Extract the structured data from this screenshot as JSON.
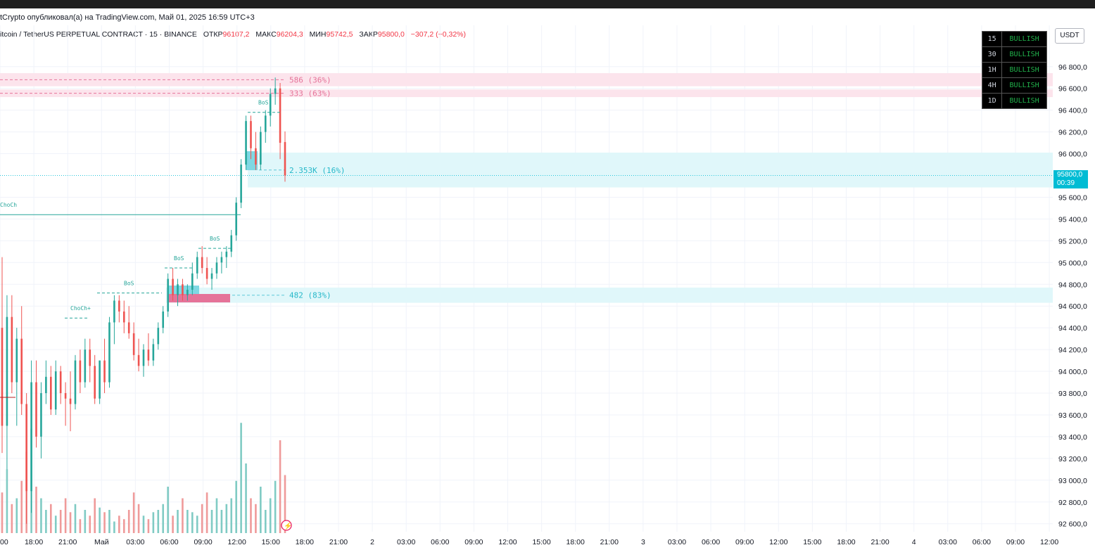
{
  "header": {
    "publish_text": "tCrypto опубликовал(а) на TradingView.com, Май 01, 2025 16:59 UTC+3",
    "symbol_text": "itcoin / TetherUS PERPETUAL CONTRACT · 15 · BINANCE",
    "open_label": "ОТКР",
    "open_value": "96107,2",
    "high_label": "МАКС",
    "high_value": "96204,3",
    "low_label": "МИН",
    "low_value": "95742,5",
    "close_label": "ЗАКР",
    "close_value": "95800,0",
    "change_text": "−307,2 (−0,32%)"
  },
  "currency_button": "USDT",
  "last_price": {
    "price": "95800,0",
    "countdown": "00:39"
  },
  "mtf_table": [
    {
      "tf": "15",
      "state": "BULLISH"
    },
    {
      "tf": "30",
      "state": "BULLISH"
    },
    {
      "tf": "1H",
      "state": "BULLISH"
    },
    {
      "tf": "4H",
      "state": "BULLISH"
    },
    {
      "tf": "1D",
      "state": "BULLISH"
    }
  ],
  "colors": {
    "up": "#26a69a",
    "down": "#ef5350",
    "vol_up": "#80cbc4",
    "vol_down": "#ef9a9a",
    "supply_zone": "#fce4ec",
    "demand_zone": "#e0f7fa",
    "struct": "#26a69a",
    "supply_line": "#e57399"
  },
  "chart_data": {
    "type": "candlestick",
    "timeframe": "15",
    "y_axis": {
      "ticks": [
        96800,
        96600,
        96400,
        96200,
        96000,
        95600,
        95400,
        95200,
        95000,
        94800,
        94600,
        94400,
        94200,
        94000,
        93800,
        93600,
        93400,
        93200,
        93000,
        92800,
        92600
      ],
      "tick_labels": [
        "96 800,0",
        "96 600,0",
        "96 400,0",
        "96 200,0",
        "96 000,0",
        "95 600,0",
        "95 400,0",
        "95 200,0",
        "95 000,0",
        "94 800,0",
        "94 600,0",
        "94 400,0",
        "94 200,0",
        "94 000,0",
        "93 800,0",
        "93 600,0",
        "93 400,0",
        "93 200,0",
        "93 000,0",
        "92 800,0",
        "92 600,0"
      ]
    },
    "x_axis": {
      "labels": [
        "00",
        "18:00",
        "21:00",
        "Май",
        "03:00",
        "06:00",
        "09:00",
        "12:00",
        "15:00",
        "18:00",
        "21:00",
        "2",
        "03:00",
        "06:00",
        "09:00",
        "12:00",
        "15:00",
        "18:00",
        "21:00",
        "3",
        "03:00",
        "06:00",
        "09:00",
        "12:00",
        "15:00",
        "18:00",
        "21:00",
        "4",
        "03:00",
        "06:00",
        "09:00",
        "12:00"
      ]
    },
    "candles": [
      {
        "o": 94400,
        "h": 95050,
        "l": 93250,
        "c": 93500
      },
      {
        "o": 93500,
        "h": 94700,
        "l": 93100,
        "c": 94500
      },
      {
        "o": 94500,
        "h": 94700,
        "l": 93800,
        "c": 93900
      },
      {
        "o": 93900,
        "h": 94400,
        "l": 93500,
        "c": 94300
      },
      {
        "o": 94300,
        "h": 94600,
        "l": 93600,
        "c": 93700
      },
      {
        "o": 93700,
        "h": 93800,
        "l": 92600,
        "c": 92900
      },
      {
        "o": 92900,
        "h": 94100,
        "l": 92700,
        "c": 93900
      },
      {
        "o": 93900,
        "h": 94100,
        "l": 93300,
        "c": 93400
      },
      {
        "o": 93400,
        "h": 93900,
        "l": 93200,
        "c": 93800
      },
      {
        "o": 93800,
        "h": 94100,
        "l": 93700,
        "c": 93950
      },
      {
        "o": 93950,
        "h": 94050,
        "l": 93600,
        "c": 93650
      },
      {
        "o": 93650,
        "h": 94100,
        "l": 93600,
        "c": 94000
      },
      {
        "o": 94000,
        "h": 94050,
        "l": 93700,
        "c": 93800
      },
      {
        "o": 93800,
        "h": 93900,
        "l": 93500,
        "c": 93750
      },
      {
        "o": 93750,
        "h": 94000,
        "l": 93450,
        "c": 93700
      },
      {
        "o": 93700,
        "h": 94150,
        "l": 93650,
        "c": 94100
      },
      {
        "o": 94100,
        "h": 94200,
        "l": 93800,
        "c": 93900
      },
      {
        "o": 93900,
        "h": 94300,
        "l": 93850,
        "c": 94200
      },
      {
        "o": 94200,
        "h": 94300,
        "l": 93900,
        "c": 94050
      },
      {
        "o": 94050,
        "h": 94150,
        "l": 93700,
        "c": 93750
      },
      {
        "o": 93750,
        "h": 94100,
        "l": 93700,
        "c": 94100
      },
      {
        "o": 94100,
        "h": 94300,
        "l": 93800,
        "c": 93900
      },
      {
        "o": 93900,
        "h": 94500,
        "l": 93850,
        "c": 94450
      },
      {
        "o": 94450,
        "h": 94700,
        "l": 94250,
        "c": 94650
      },
      {
        "o": 94650,
        "h": 94700,
        "l": 94450,
        "c": 94550
      },
      {
        "o": 94550,
        "h": 94650,
        "l": 94350,
        "c": 94450
      },
      {
        "o": 94450,
        "h": 94600,
        "l": 94300,
        "c": 94350
      },
      {
        "o": 94350,
        "h": 94450,
        "l": 94100,
        "c": 94150
      },
      {
        "o": 94150,
        "h": 94300,
        "l": 94000,
        "c": 94050
      },
      {
        "o": 94050,
        "h": 94250,
        "l": 93950,
        "c": 94200
      },
      {
        "o": 94200,
        "h": 94350,
        "l": 94050,
        "c": 94100
      },
      {
        "o": 94100,
        "h": 94300,
        "l": 94050,
        "c": 94250
      },
      {
        "o": 94250,
        "h": 94450,
        "l": 94200,
        "c": 94400
      },
      {
        "o": 94400,
        "h": 94600,
        "l": 94350,
        "c": 94550
      },
      {
        "o": 94550,
        "h": 94900,
        "l": 94500,
        "c": 94850
      },
      {
        "o": 94850,
        "h": 94950,
        "l": 94650,
        "c": 94700
      },
      {
        "o": 94700,
        "h": 94850,
        "l": 94600,
        "c": 94800
      },
      {
        "o": 94800,
        "h": 94850,
        "l": 94650,
        "c": 94700
      },
      {
        "o": 94700,
        "h": 94800,
        "l": 94650,
        "c": 94750
      },
      {
        "o": 94750,
        "h": 95000,
        "l": 94700,
        "c": 94900
      },
      {
        "o": 94900,
        "h": 95100,
        "l": 94850,
        "c": 95050
      },
      {
        "o": 95050,
        "h": 95150,
        "l": 94900,
        "c": 94950
      },
      {
        "o": 94950,
        "h": 95050,
        "l": 94800,
        "c": 94850
      },
      {
        "o": 94850,
        "h": 94950,
        "l": 94750,
        "c": 94900
      },
      {
        "o": 94900,
        "h": 95050,
        "l": 94850,
        "c": 95000
      },
      {
        "o": 95000,
        "h": 95100,
        "l": 94900,
        "c": 95050
      },
      {
        "o": 95050,
        "h": 95150,
        "l": 94950,
        "c": 95100
      },
      {
        "o": 95100,
        "h": 95300,
        "l": 95050,
        "c": 95250
      },
      {
        "o": 95250,
        "h": 95600,
        "l": 95200,
        "c": 95550
      },
      {
        "o": 95550,
        "h": 95950,
        "l": 95500,
        "c": 95900
      },
      {
        "o": 95900,
        "h": 96350,
        "l": 95850,
        "c": 96300
      },
      {
        "o": 96300,
        "h": 96350,
        "l": 95950,
        "c": 96050
      },
      {
        "o": 96050,
        "h": 96200,
        "l": 95850,
        "c": 95900
      },
      {
        "o": 95900,
        "h": 96250,
        "l": 95850,
        "c": 96200
      },
      {
        "o": 96200,
        "h": 96400,
        "l": 96100,
        "c": 96350
      },
      {
        "o": 96350,
        "h": 96600,
        "l": 96250,
        "c": 96550
      },
      {
        "o": 96550,
        "h": 96700,
        "l": 96450,
        "c": 96600
      },
      {
        "o": 96600,
        "h": 96650,
        "l": 95950,
        "c": 96100
      },
      {
        "o": 96107.2,
        "h": 96204.3,
        "l": 95742.5,
        "c": 95800
      }
    ],
    "volume_relative": [
      0.35,
      0.55,
      0.25,
      0.3,
      0.45,
      0.7,
      0.9,
      0.4,
      0.3,
      0.2,
      0.25,
      0.15,
      0.2,
      0.3,
      0.18,
      0.25,
      0.12,
      0.2,
      0.15,
      0.3,
      0.22,
      0.18,
      0.2,
      0.1,
      0.15,
      0.12,
      0.2,
      0.35,
      0.25,
      0.15,
      0.12,
      0.18,
      0.2,
      0.25,
      0.4,
      0.15,
      0.2,
      0.3,
      0.2,
      0.18,
      0.15,
      0.25,
      0.35,
      0.2,
      0.3,
      0.2,
      0.25,
      0.3,
      0.45,
      0.95,
      0.6,
      0.3,
      0.25,
      0.4,
      0.2,
      0.3,
      0.45,
      0.8,
      0.5
    ],
    "annotations": [
      {
        "type": "supply_zone",
        "from": 96620,
        "to": 96740,
        "label": "586 (36%)"
      },
      {
        "type": "supply_zone",
        "from": 96520,
        "to": 96590,
        "label": "333 (63%)"
      },
      {
        "type": "demand_zone",
        "from": 95690,
        "to": 96010,
        "label": "2.353K (16%)"
      },
      {
        "type": "demand_zone",
        "from": 94630,
        "to": 94770,
        "label": "482 (83%)"
      },
      {
        "type": "structure",
        "label": "ChoCh",
        "price": 95440
      },
      {
        "type": "structure",
        "label": "ChoCh+",
        "price": 94490
      },
      {
        "type": "structure",
        "label": "BoS",
        "price": 94720
      },
      {
        "type": "structure",
        "label": "BoS",
        "price": 94950
      },
      {
        "type": "structure",
        "label": "BoS",
        "price": 95130
      },
      {
        "type": "structure",
        "label": "BoS",
        "price": 96380
      }
    ]
  }
}
